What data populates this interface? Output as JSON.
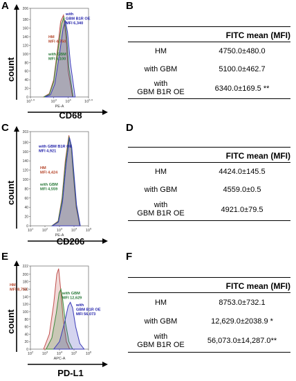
{
  "charts": [
    {
      "panel": "A",
      "marker": "CD68",
      "ylabel": "count",
      "xaxis_label": "PE-A",
      "x_ticks": [
        "10^1.4",
        "10^3",
        "10^4",
        "10^5.4"
      ],
      "y_ticks": [
        "0",
        "20",
        "40",
        "60",
        "80",
        "100",
        "120",
        "140",
        "160",
        "180",
        "206"
      ],
      "annotations": [
        {
          "lines": [
            "with",
            "GBM B1R OE",
            "MFI 6,340"
          ],
          "color": "#2222aa"
        },
        {
          "lines": [
            "HM",
            "MFI 4,750"
          ],
          "color": "#b5452a"
        },
        {
          "lines": [
            "with GBM",
            "MFI 5,100"
          ],
          "color": "#2a7a3a"
        }
      ]
    },
    {
      "panel": "C",
      "marker": "CD206",
      "ylabel": "count",
      "xaxis_label": "PE-A",
      "x_ticks": [
        "10^1",
        "10^2",
        "10^3",
        "10^4",
        "10^5"
      ],
      "y_ticks": [
        "0",
        "20",
        "40",
        "60",
        "80",
        "100",
        "120",
        "140",
        "160",
        "180",
        "203"
      ],
      "annotations": [
        {
          "lines": [
            "with GBM B1R OE",
            "MFI 4,921"
          ],
          "color": "#2222aa"
        },
        {
          "lines": [
            "HM",
            "MFI 4,424"
          ],
          "color": "#b5452a"
        },
        {
          "lines": [
            "with GBM",
            "MFI 4,559"
          ],
          "color": "#2a7a3a"
        }
      ]
    },
    {
      "panel": "E",
      "marker": "PD-L1",
      "ylabel": "count",
      "xaxis_label": "APC-A",
      "x_ticks": [
        "10^2",
        "10^3",
        "10^4",
        "10^5",
        "10^6"
      ],
      "y_ticks": [
        "0",
        "20",
        "40",
        "60",
        "80",
        "100",
        "120",
        "140",
        "160",
        "180",
        "200",
        "222"
      ],
      "annotations": [
        {
          "lines": [
            "HM",
            "MFI 8,753"
          ],
          "color": "#b5452a"
        },
        {
          "lines": [
            "with GBM",
            "MFI 12,629"
          ],
          "color": "#2a7a3a"
        },
        {
          "lines": [
            "with",
            "GBM B1R OE",
            "MFI 56,073"
          ],
          "color": "#2222aa"
        }
      ]
    }
  ],
  "tables": [
    {
      "panel": "B",
      "header": "FITC mean  (MFI)",
      "rows": [
        {
          "label": [
            "HM"
          ],
          "value": "4750.0±480.0",
          "sig": ""
        },
        {
          "label": [
            "with GBM"
          ],
          "value": "5100.0±462.7",
          "sig": ""
        },
        {
          "label": [
            "with",
            "GBM B1R OE"
          ],
          "value": "6340.0±169.5",
          "sig": "**"
        }
      ]
    },
    {
      "panel": "D",
      "header": "FITC mean  (MFI)",
      "rows": [
        {
          "label": [
            "HM"
          ],
          "value": "4424.0±145.5",
          "sig": ""
        },
        {
          "label": [
            "with GBM"
          ],
          "value": "4559.0±0.5",
          "sig": ""
        },
        {
          "label": [
            "with",
            "GBM B1R OE"
          ],
          "value": "4921.0±79.5",
          "sig": ""
        }
      ]
    },
    {
      "panel": "F",
      "header": "FITC mean  (MFI)",
      "rows": [
        {
          "label": [
            "HM"
          ],
          "value": "8753.0±732.1",
          "sig": ""
        },
        {
          "label": [
            "with GBM"
          ],
          "value": "12,629.0±2038.9",
          "sig": "*"
        },
        {
          "label": [
            "with",
            "GBM B1R OE"
          ],
          "value": "56,073.0±14,287.0",
          "sig": "**"
        }
      ]
    }
  ],
  "chart_data": [
    {
      "type": "area",
      "title": "CD68",
      "xlabel": "PE-A",
      "ylabel": "count",
      "x_scale": "log",
      "xlim": [
        25,
        251189
      ],
      "ylim": [
        0,
        206
      ],
      "series": [
        {
          "name": "HM",
          "color": "#c0504d",
          "x": [
            200,
            500,
            1000,
            2000,
            3000,
            4750,
            7000,
            10000,
            20000
          ],
          "y": [
            0,
            8,
            40,
            120,
            175,
            190,
            140,
            60,
            0
          ]
        },
        {
          "name": "with GBM",
          "color": "#3c8a3c",
          "x": [
            200,
            500,
            1000,
            2000,
            3500,
            5100,
            7500,
            11000,
            22000
          ],
          "y": [
            0,
            6,
            35,
            110,
            170,
            185,
            150,
            70,
            0
          ]
        },
        {
          "name": "with GBM B1R OE",
          "color": "#3a3ab8",
          "x": [
            250,
            600,
            1200,
            2500,
            4500,
            6340,
            9000,
            14000,
            30000
          ],
          "y": [
            0,
            5,
            30,
            100,
            160,
            178,
            150,
            80,
            0
          ]
        }
      ]
    },
    {
      "type": "area",
      "title": "CD206",
      "xlabel": "PE-A",
      "ylabel": "count",
      "x_scale": "log",
      "xlim": [
        10,
        100000
      ],
      "ylim": [
        0,
        203
      ],
      "series": [
        {
          "name": "HM",
          "color": "#c0504d",
          "x": [
            300,
            800,
            1500,
            2500,
            4424,
            6500,
            9000,
            14000,
            25000
          ],
          "y": [
            0,
            10,
            60,
            140,
            195,
            170,
            110,
            40,
            0
          ]
        },
        {
          "name": "with GBM",
          "color": "#3c8a3c",
          "x": [
            300,
            800,
            1500,
            2600,
            4559,
            6700,
            9200,
            14500,
            26000
          ],
          "y": [
            0,
            9,
            55,
            135,
            192,
            168,
            112,
            42,
            0
          ]
        },
        {
          "name": "with GBM B1R OE",
          "color": "#3a3ab8",
          "x": [
            320,
            850,
            1600,
            2800,
            4921,
            7000,
            9800,
            15000,
            27000
          ],
          "y": [
            0,
            8,
            50,
            130,
            190,
            170,
            115,
            45,
            0
          ]
        }
      ]
    },
    {
      "type": "area",
      "title": "PD-L1",
      "xlabel": "APC-A",
      "ylabel": "count",
      "x_scale": "log",
      "xlim": [
        100,
        1000000
      ],
      "ylim": [
        0,
        222
      ],
      "series": [
        {
          "name": "HM",
          "color": "#c0504d",
          "x": [
            800,
            2000,
            4000,
            6500,
            8753,
            12000,
            18000,
            30000,
            50000
          ],
          "y": [
            0,
            40,
            120,
            200,
            215,
            160,
            80,
            20,
            0
          ]
        },
        {
          "name": "with GBM",
          "color": "#3c8a3c",
          "x": [
            1200,
            3000,
            6000,
            9500,
            12629,
            17000,
            26000,
            45000,
            80000
          ],
          "y": [
            0,
            30,
            95,
            150,
            160,
            130,
            70,
            20,
            0
          ]
        },
        {
          "name": "with GBM B1R OE",
          "color": "#3a3ab8",
          "x": [
            4000,
            10000,
            22000,
            40000,
            56073,
            80000,
            130000,
            250000,
            500000
          ],
          "y": [
            0,
            20,
            70,
            115,
            125,
            110,
            60,
            15,
            0
          ]
        }
      ]
    }
  ]
}
